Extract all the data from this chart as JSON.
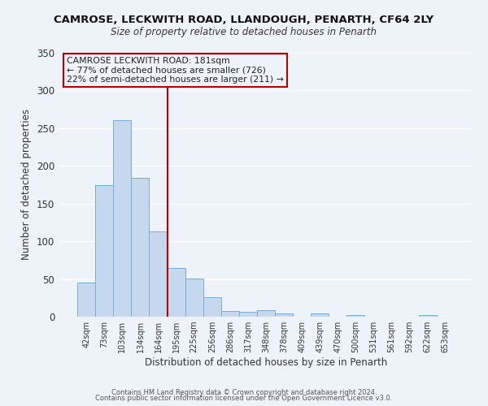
{
  "title": "CAMROSE, LECKWITH ROAD, LLANDOUGH, PENARTH, CF64 2LY",
  "subtitle": "Size of property relative to detached houses in Penarth",
  "xlabel": "Distribution of detached houses by size in Penarth",
  "ylabel": "Number of detached properties",
  "bar_labels": [
    "42sqm",
    "73sqm",
    "103sqm",
    "134sqm",
    "164sqm",
    "195sqm",
    "225sqm",
    "256sqm",
    "286sqm",
    "317sqm",
    "348sqm",
    "378sqm",
    "409sqm",
    "439sqm",
    "470sqm",
    "500sqm",
    "531sqm",
    "561sqm",
    "592sqm",
    "622sqm",
    "653sqm"
  ],
  "bar_values": [
    45,
    175,
    261,
    184,
    113,
    65,
    51,
    26,
    8,
    6,
    9,
    4,
    0,
    4,
    0,
    2,
    0,
    0,
    0,
    2,
    0
  ],
  "bar_color": "#c5d8ee",
  "bar_edge_color": "#7aadd4",
  "vline_x": 4.5,
  "vline_color": "#bb0000",
  "annotation_title": "CAMROSE LECKWITH ROAD: 181sqm",
  "annotation_line1": "← 77% of detached houses are smaller (726)",
  "annotation_line2": "22% of semi-detached houses are larger (211) →",
  "annotation_box_edge": "#bb0000",
  "ylim": [
    0,
    350
  ],
  "yticks": [
    0,
    50,
    100,
    150,
    200,
    250,
    300,
    350
  ],
  "footer1": "Contains HM Land Registry data © Crown copyright and database right 2024.",
  "footer2": "Contains public sector information licensed under the Open Government Licence v3.0.",
  "bg_color": "#eef2f9",
  "grid_color": "#ffffff"
}
